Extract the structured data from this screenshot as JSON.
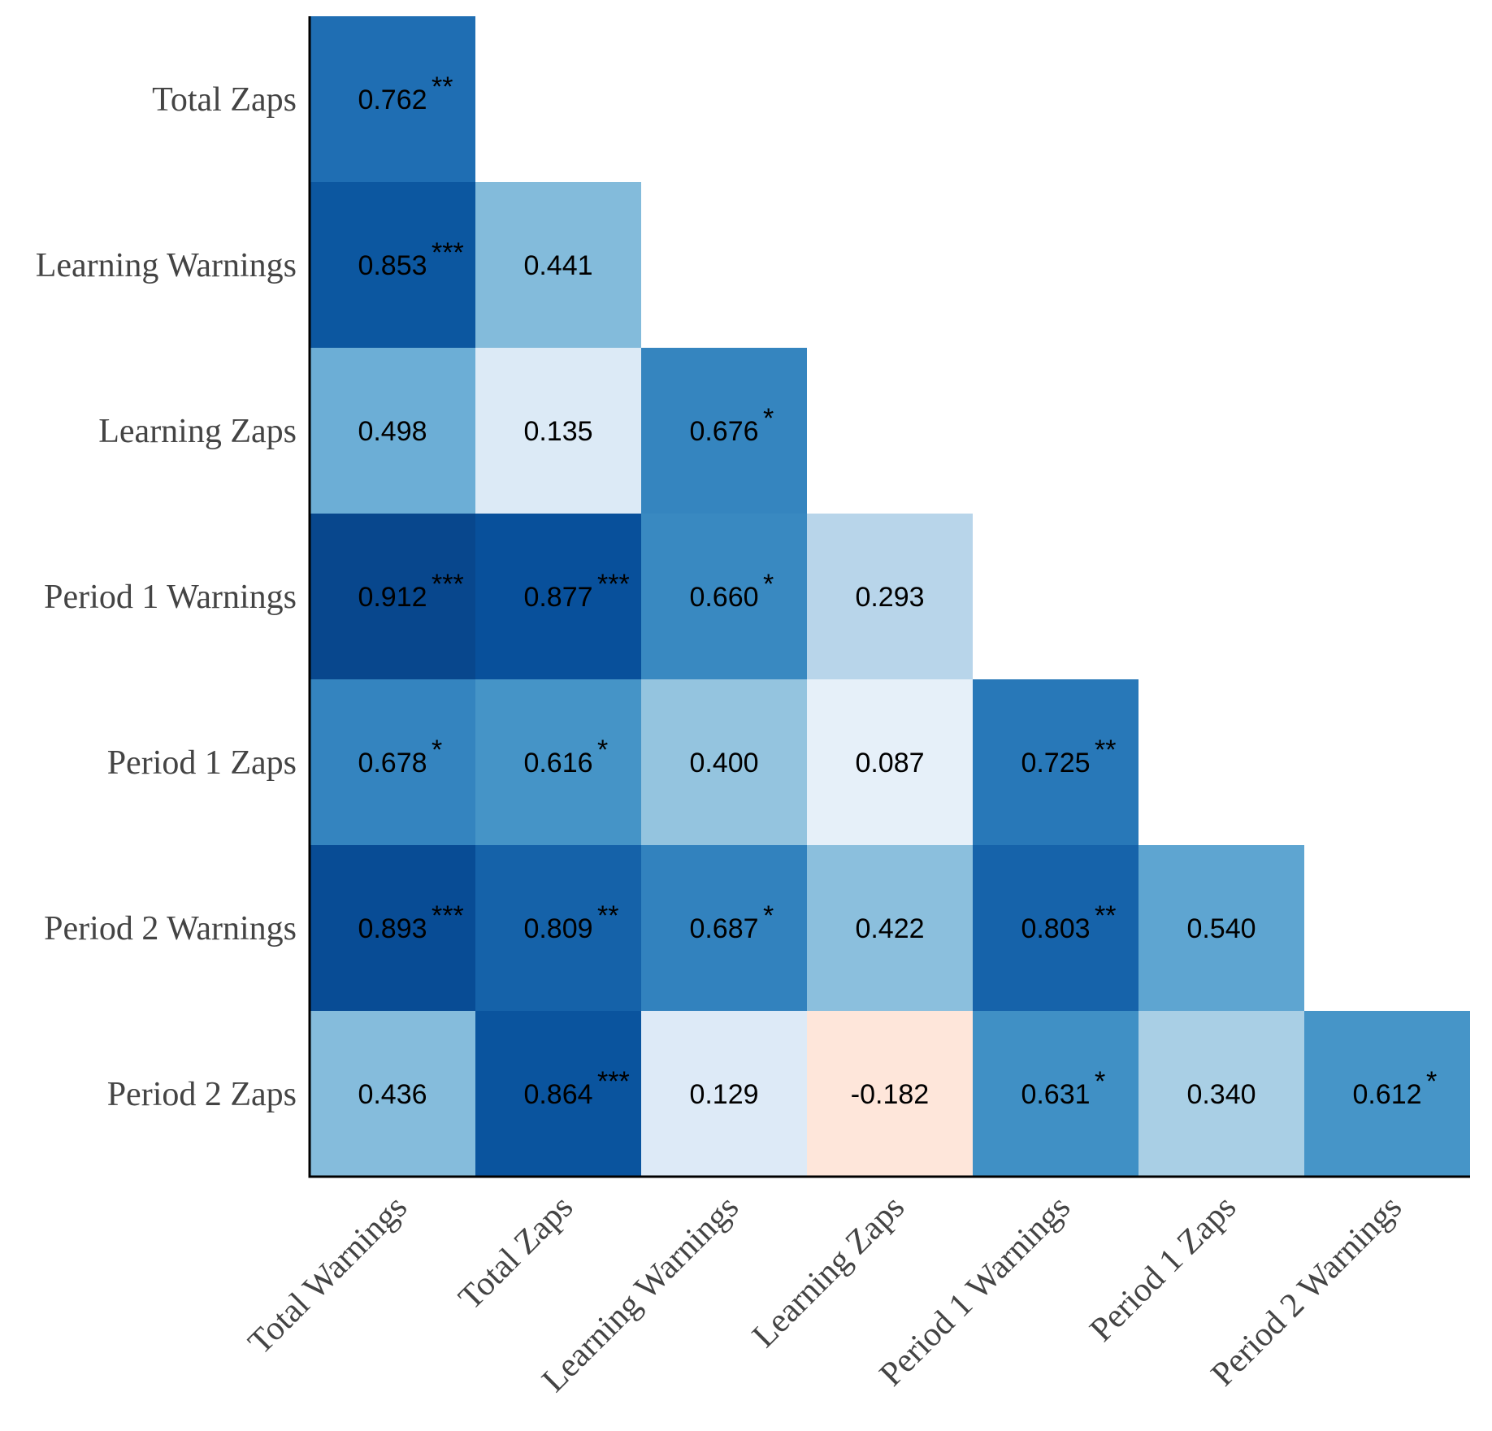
{
  "chart_data": {
    "type": "heatmap",
    "title": "",
    "xlabel": "",
    "ylabel": "",
    "x_labels": [
      "Total Warnings",
      "Total Zaps",
      "Learning Warnings",
      "Learning Zaps",
      "Period 1 Warnings",
      "Period 1 Zaps",
      "Period 2 Warnings"
    ],
    "y_labels": [
      "Total Zaps",
      "Learning Warnings",
      "Learning Zaps",
      "Period 1 Warnings",
      "Period 1 Zaps",
      "Period 2 Warnings",
      "Period 2 Zaps"
    ],
    "cells": [
      {
        "row": 0,
        "col": 0,
        "label": "0.762",
        "value": 0.762,
        "sig": "**"
      },
      {
        "row": 1,
        "col": 0,
        "label": "0.853",
        "value": 0.853,
        "sig": "***"
      },
      {
        "row": 1,
        "col": 1,
        "label": "0.441",
        "value": 0.441,
        "sig": ""
      },
      {
        "row": 2,
        "col": 0,
        "label": "0.498",
        "value": 0.498,
        "sig": ""
      },
      {
        "row": 2,
        "col": 1,
        "label": "0.135",
        "value": 0.135,
        "sig": ""
      },
      {
        "row": 2,
        "col": 2,
        "label": "0.676",
        "value": 0.676,
        "sig": "*"
      },
      {
        "row": 3,
        "col": 0,
        "label": "0.912",
        "value": 0.912,
        "sig": "***"
      },
      {
        "row": 3,
        "col": 1,
        "label": "0.877",
        "value": 0.877,
        "sig": "***"
      },
      {
        "row": 3,
        "col": 2,
        "label": "0.660",
        "value": 0.66,
        "sig": "*"
      },
      {
        "row": 3,
        "col": 3,
        "label": "0.293",
        "value": 0.293,
        "sig": ""
      },
      {
        "row": 4,
        "col": 0,
        "label": "0.678",
        "value": 0.678,
        "sig": "*"
      },
      {
        "row": 4,
        "col": 1,
        "label": "0.616",
        "value": 0.616,
        "sig": "*"
      },
      {
        "row": 4,
        "col": 2,
        "label": "0.400",
        "value": 0.4,
        "sig": ""
      },
      {
        "row": 4,
        "col": 3,
        "label": "0.087",
        "value": 0.087,
        "sig": ""
      },
      {
        "row": 4,
        "col": 4,
        "label": "0.725",
        "value": 0.725,
        "sig": "**"
      },
      {
        "row": 5,
        "col": 0,
        "label": "0.893",
        "value": 0.893,
        "sig": "***"
      },
      {
        "row": 5,
        "col": 1,
        "label": "0.809",
        "value": 0.809,
        "sig": "**"
      },
      {
        "row": 5,
        "col": 2,
        "label": "0.687",
        "value": 0.687,
        "sig": "*"
      },
      {
        "row": 5,
        "col": 3,
        "label": "0.422",
        "value": 0.422,
        "sig": ""
      },
      {
        "row": 5,
        "col": 4,
        "label": "0.803",
        "value": 0.803,
        "sig": "**"
      },
      {
        "row": 5,
        "col": 5,
        "label": "0.540",
        "value": 0.54,
        "sig": ""
      },
      {
        "row": 6,
        "col": 0,
        "label": "0.436",
        "value": 0.436,
        "sig": ""
      },
      {
        "row": 6,
        "col": 1,
        "label": "0.864",
        "value": 0.864,
        "sig": "***"
      },
      {
        "row": 6,
        "col": 2,
        "label": "0.129",
        "value": 0.129,
        "sig": ""
      },
      {
        "row": 6,
        "col": 3,
        "label": "-0.182",
        "value": -0.182,
        "sig": ""
      },
      {
        "row": 6,
        "col": 4,
        "label": "0.631",
        "value": 0.631,
        "sig": "*"
      },
      {
        "row": 6,
        "col": 5,
        "label": "0.340",
        "value": 0.34,
        "sig": ""
      },
      {
        "row": 6,
        "col": 6,
        "label": "0.612",
        "value": 0.612,
        "sig": "*"
      }
    ],
    "value_range": [
      -1,
      1
    ],
    "colors": {
      "positive_scale": [
        "#f7fbff",
        "#deebf7",
        "#c6dbef",
        "#9ecae1",
        "#6baed6",
        "#4292c6",
        "#2171b5",
        "#08519c",
        "#08306b"
      ],
      "negative_scale": [
        "#fff5f0",
        "#fee0d2",
        "#fcbba1",
        "#fc9272",
        "#fb6a4a"
      ],
      "axis": "#000000"
    },
    "grid": false
  }
}
